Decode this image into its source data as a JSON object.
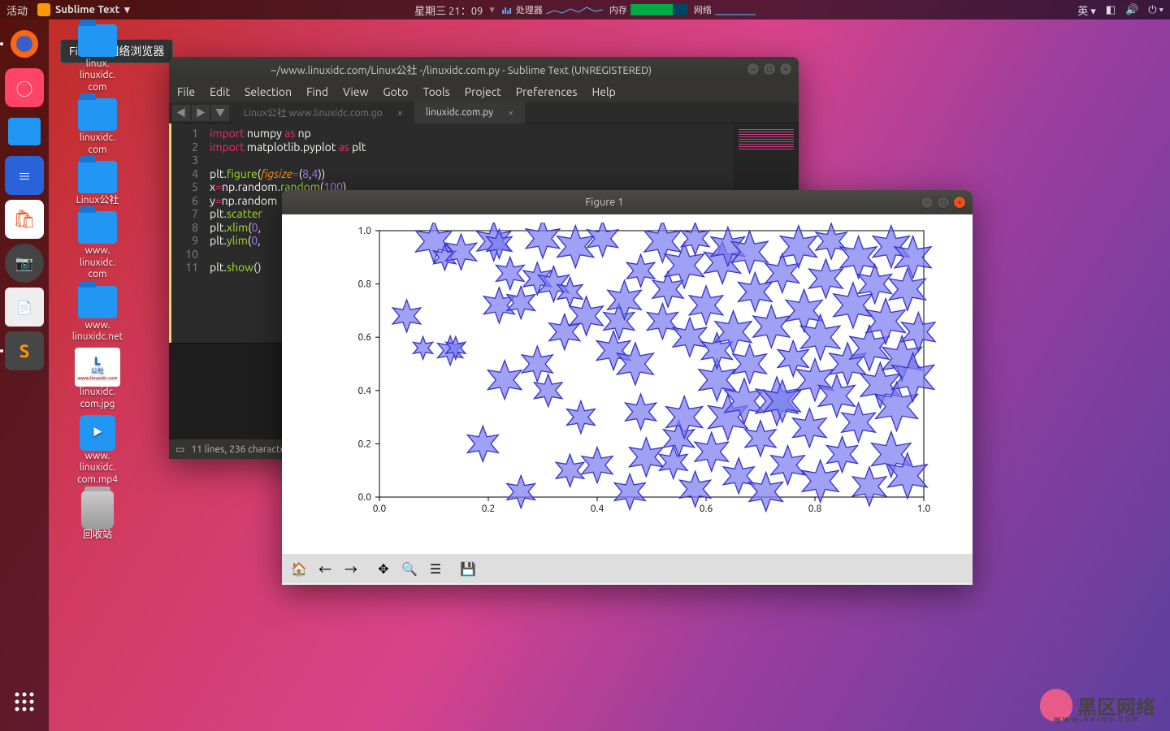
{
  "topbar": {
    "activities": "活动",
    "app_name": "Sublime Text",
    "datetime": "星期三 21：09",
    "cpu_label": "处理器",
    "mem_label": "内存",
    "net_label": "网络",
    "ime": "英"
  },
  "tooltip": "Firefox 网络浏览器",
  "desktop_icons": [
    {
      "label": "linux.\nlinuxidc.\ncom",
      "type": "folder"
    },
    {
      "label": "linuxidc.\ncom",
      "type": "folder"
    },
    {
      "label": "Linux公社",
      "type": "folder"
    },
    {
      "label": "www.\nlinuxidc.\ncom",
      "type": "folder"
    },
    {
      "label": "www.\nlinuxidc.net",
      "type": "folder"
    },
    {
      "label": "linuxidc.\ncom.jpg",
      "type": "image"
    },
    {
      "label": "www.\nlinuxidc.\ncom.mp4",
      "type": "video"
    },
    {
      "label": "回收站",
      "type": "trash"
    }
  ],
  "sublime": {
    "title": "~/www.linuxidc.com/Linux公社 -/linuxidc.com.py - Sublime Text (UNREGISTERED)",
    "menu": [
      "File",
      "Edit",
      "Selection",
      "Find",
      "View",
      "Goto",
      "Tools",
      "Project",
      "Preferences",
      "Help"
    ],
    "tabs": [
      {
        "label": "Linux公社 www.linuxidc.com.go",
        "active": false
      },
      {
        "label": "linuxidc.com.py",
        "active": true
      }
    ],
    "status": "11 lines, 236 characters",
    "code_lines": 11
  },
  "figure": {
    "title": "Figure 1",
    "xlim": [
      0.0,
      1.0
    ],
    "ylim": [
      0.0,
      1.0
    ],
    "xticks": [
      0.0,
      0.2,
      0.4,
      0.6,
      0.8,
      1.0
    ],
    "yticks": [
      0.0,
      0.2,
      0.4,
      0.6,
      0.8,
      1.0
    ],
    "tick_fontsize": 12,
    "background": "#ffffff",
    "axis_color": "#000000",
    "marker": "star6",
    "marker_fill": "#7b7bf0",
    "marker_fill_opacity": 0.72,
    "marker_edge": "#3434c8",
    "marker_edge_width": 1.3,
    "points": [
      [
        0.05,
        0.68,
        20
      ],
      [
        0.08,
        0.56,
        14
      ],
      [
        0.1,
        0.96,
        26
      ],
      [
        0.12,
        0.9,
        16
      ],
      [
        0.13,
        0.55,
        18
      ],
      [
        0.14,
        0.56,
        14
      ],
      [
        0.15,
        0.92,
        22
      ],
      [
        0.19,
        0.2,
        22
      ],
      [
        0.21,
        0.96,
        24
      ],
      [
        0.22,
        0.72,
        22
      ],
      [
        0.22,
        0.95,
        18
      ],
      [
        0.23,
        0.44,
        24
      ],
      [
        0.24,
        0.84,
        20
      ],
      [
        0.26,
        0.73,
        20
      ],
      [
        0.26,
        0.02,
        20
      ],
      [
        0.29,
        0.5,
        22
      ],
      [
        0.29,
        0.82,
        20
      ],
      [
        0.3,
        0.97,
        24
      ],
      [
        0.31,
        0.4,
        20
      ],
      [
        0.32,
        0.8,
        22
      ],
      [
        0.34,
        0.62,
        22
      ],
      [
        0.35,
        0.1,
        20
      ],
      [
        0.35,
        0.77,
        18
      ],
      [
        0.36,
        0.94,
        26
      ],
      [
        0.38,
        0.68,
        24
      ],
      [
        0.4,
        0.12,
        22
      ],
      [
        0.41,
        0.97,
        22
      ],
      [
        0.43,
        0.55,
        24
      ],
      [
        0.44,
        0.66,
        22
      ],
      [
        0.45,
        0.74,
        24
      ],
      [
        0.46,
        0.02,
        22
      ],
      [
        0.47,
        0.5,
        26
      ],
      [
        0.48,
        0.85,
        20
      ],
      [
        0.49,
        0.15,
        24
      ],
      [
        0.52,
        0.96,
        26
      ],
      [
        0.52,
        0.66,
        22
      ],
      [
        0.53,
        0.78,
        22
      ],
      [
        0.54,
        0.13,
        20
      ],
      [
        0.55,
        0.22,
        22
      ],
      [
        0.56,
        0.3,
        26
      ],
      [
        0.56,
        0.87,
        28
      ],
      [
        0.57,
        0.6,
        24
      ],
      [
        0.58,
        0.97,
        20
      ],
      [
        0.58,
        0.03,
        22
      ],
      [
        0.6,
        0.72,
        24
      ],
      [
        0.61,
        0.17,
        24
      ],
      [
        0.62,
        0.44,
        26
      ],
      [
        0.62,
        0.55,
        22
      ],
      [
        0.63,
        0.88,
        26
      ],
      [
        0.64,
        0.3,
        28
      ],
      [
        0.64,
        0.94,
        24
      ],
      [
        0.65,
        0.62,
        26
      ],
      [
        0.66,
        0.08,
        22
      ],
      [
        0.67,
        0.36,
        28
      ],
      [
        0.68,
        0.5,
        24
      ],
      [
        0.68,
        0.92,
        26
      ],
      [
        0.69,
        0.77,
        24
      ],
      [
        0.7,
        0.22,
        22
      ],
      [
        0.71,
        0.02,
        24
      ],
      [
        0.72,
        0.64,
        26
      ],
      [
        0.73,
        0.36,
        30
      ],
      [
        0.74,
        0.36,
        26
      ],
      [
        0.74,
        0.84,
        24
      ],
      [
        0.75,
        0.12,
        24
      ],
      [
        0.76,
        0.52,
        22
      ],
      [
        0.77,
        0.94,
        26
      ],
      [
        0.78,
        0.7,
        26
      ],
      [
        0.79,
        0.26,
        24
      ],
      [
        0.8,
        0.44,
        26
      ],
      [
        0.81,
        0.06,
        26
      ],
      [
        0.81,
        0.6,
        28
      ],
      [
        0.82,
        0.82,
        24
      ],
      [
        0.83,
        0.96,
        22
      ],
      [
        0.84,
        0.38,
        26
      ],
      [
        0.85,
        0.16,
        22
      ],
      [
        0.86,
        0.5,
        26
      ],
      [
        0.87,
        0.72,
        28
      ],
      [
        0.88,
        0.9,
        26
      ],
      [
        0.88,
        0.28,
        24
      ],
      [
        0.9,
        0.56,
        28
      ],
      [
        0.9,
        0.04,
        24
      ],
      [
        0.91,
        0.8,
        24
      ],
      [
        0.92,
        0.42,
        28
      ],
      [
        0.93,
        0.66,
        28
      ],
      [
        0.94,
        0.16,
        28
      ],
      [
        0.94,
        0.94,
        26
      ],
      [
        0.95,
        0.34,
        30
      ],
      [
        0.96,
        0.52,
        28
      ],
      [
        0.97,
        0.78,
        26
      ],
      [
        0.97,
        0.08,
        28
      ],
      [
        0.98,
        0.45,
        30
      ],
      [
        0.98,
        0.9,
        26
      ],
      [
        0.99,
        0.62,
        24
      ],
      [
        0.48,
        0.32,
        22
      ],
      [
        0.37,
        0.3,
        20
      ],
      [
        0.14,
        0.3,
        0
      ]
    ],
    "toolbar": [
      "home",
      "back",
      "forward",
      "|",
      "pan",
      "zoom",
      "configure",
      "|",
      "save"
    ]
  },
  "watermark": {
    "main": "黑区网络",
    "sub": "www.heiqu.com"
  }
}
